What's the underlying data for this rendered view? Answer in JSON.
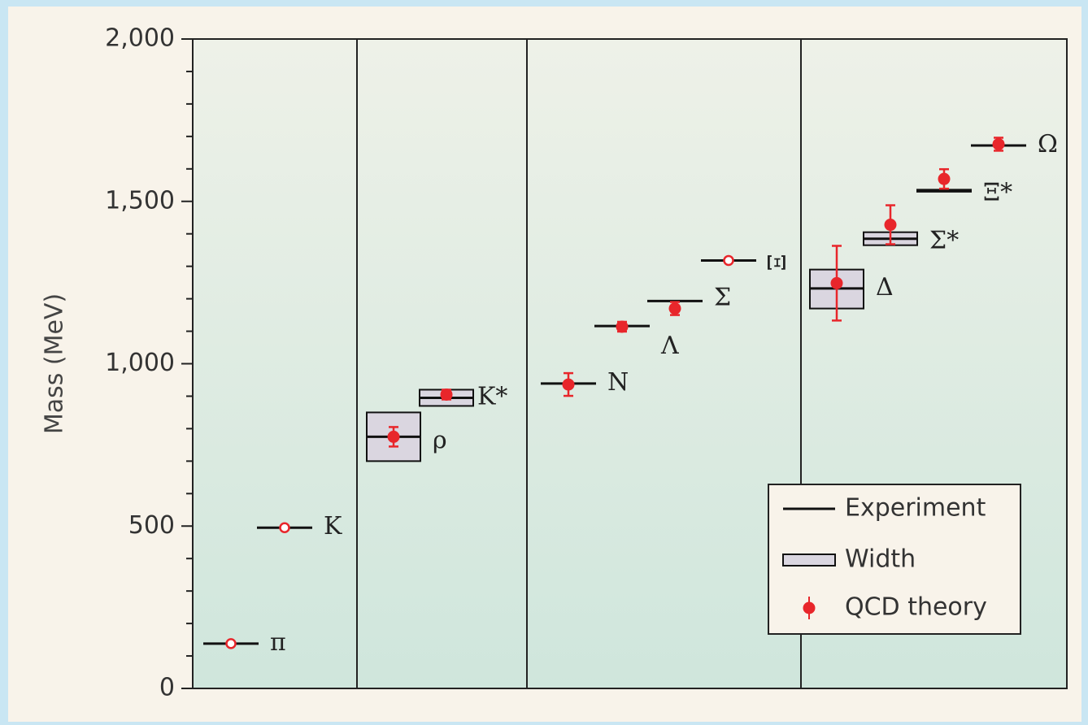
{
  "chart_data": {
    "type": "scatter",
    "ylabel": "Mass (MeV)",
    "ylim": [
      0,
      2000
    ],
    "yticks": [
      0,
      500,
      1000,
      1500,
      2000
    ],
    "ytick_labels": [
      "0",
      "500",
      "1,000",
      "1,500",
      "2,000"
    ],
    "grid": false,
    "legend_placement": "bottom-right",
    "legend": {
      "experiment": "Experiment",
      "width": "Width",
      "theory": "QCD theory"
    },
    "colors": {
      "theory": "#e8262b",
      "experiment": "#111111",
      "width_fill": "#dad6e0",
      "panel_top": "#eef1e8",
      "panel_bottom": "#cfe6dc"
    },
    "groups": [
      {
        "particles": [
          {
            "label": "π",
            "experiment": 138,
            "theory": 138,
            "theory_error": 0,
            "width_low": null,
            "width_high": null,
            "open_marker": true
          },
          {
            "label": "K",
            "experiment": 495,
            "theory": 495,
            "theory_error": 0,
            "width_low": null,
            "width_high": null,
            "open_marker": true
          }
        ]
      },
      {
        "particles": [
          {
            "label": "ρ",
            "experiment": 775,
            "theory": 775,
            "theory_error": 30,
            "width_low": 700,
            "width_high": 850,
            "open_marker": false
          },
          {
            "label": "K*",
            "experiment": 895,
            "theory": 905,
            "theory_error": 15,
            "width_low": 870,
            "width_high": 920,
            "open_marker": false
          }
        ]
      },
      {
        "particles": [
          {
            "label": "N",
            "experiment": 939,
            "theory": 936,
            "theory_error": 35,
            "width_low": null,
            "width_high": null,
            "open_marker": false
          },
          {
            "label": "Λ",
            "experiment": 1116,
            "theory": 1114,
            "theory_error": 15,
            "width_low": null,
            "width_high": null,
            "open_marker": false
          },
          {
            "label": "Σ",
            "experiment": 1193,
            "theory": 1170,
            "theory_error": 20,
            "width_low": null,
            "width_high": null,
            "open_marker": false
          },
          {
            "label": "Ξ",
            "experiment": 1318,
            "theory": 1318,
            "theory_error": 0,
            "width_low": null,
            "width_high": null,
            "open_marker": true
          }
        ]
      },
      {
        "particles": [
          {
            "label": "Δ",
            "experiment": 1232,
            "theory": 1248,
            "theory_error": 115,
            "width_low": 1170,
            "width_high": 1290,
            "open_marker": false
          },
          {
            "label": "Σ*",
            "experiment": 1385,
            "theory": 1428,
            "theory_error": 60,
            "width_low": 1365,
            "width_high": 1405,
            "open_marker": false
          },
          {
            "label": "Ξ*",
            "experiment": 1533,
            "theory": 1569,
            "theory_error": 30,
            "width_low": null,
            "width_high": null,
            "open_marker": false
          },
          {
            "label": "Ω",
            "experiment": 1672,
            "theory": 1676,
            "theory_error": 20,
            "width_low": null,
            "width_high": null,
            "open_marker": false
          }
        ]
      }
    ]
  }
}
